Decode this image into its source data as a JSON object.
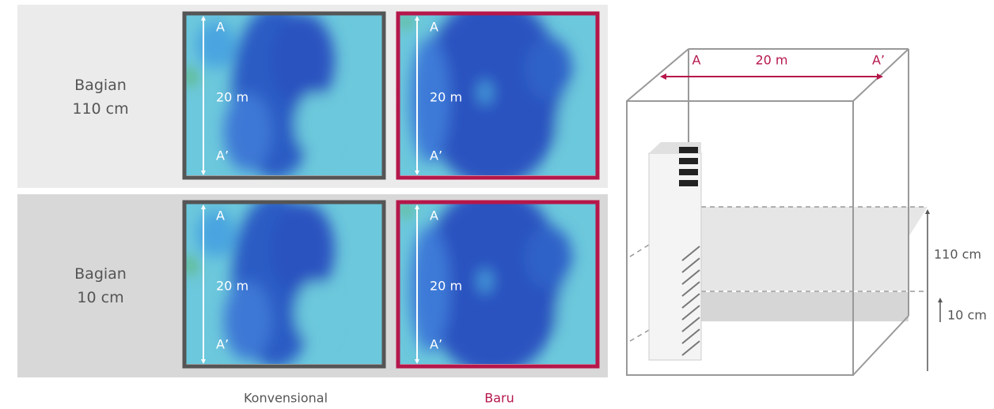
{
  "comparison": {
    "rows": [
      {
        "label": [
          "Bagian",
          "110 cm"
        ],
        "panels": [
          {
            "top": "A",
            "middle": "20 m",
            "bottom": "A’"
          },
          {
            "top": "A",
            "middle": "20 m",
            "bottom": "A’"
          }
        ]
      },
      {
        "label": [
          "Bagian",
          "10 cm"
        ],
        "panels": [
          {
            "top": "A",
            "middle": "20 m",
            "bottom": "A’"
          },
          {
            "top": "A",
            "middle": "20 m",
            "bottom": "A’"
          }
        ]
      }
    ],
    "columns": [
      "Konvensional",
      "Baru"
    ]
  },
  "room": {
    "start": "A",
    "length": "20 m",
    "end": "A’",
    "heights": [
      "110 cm",
      "10 cm"
    ]
  }
}
